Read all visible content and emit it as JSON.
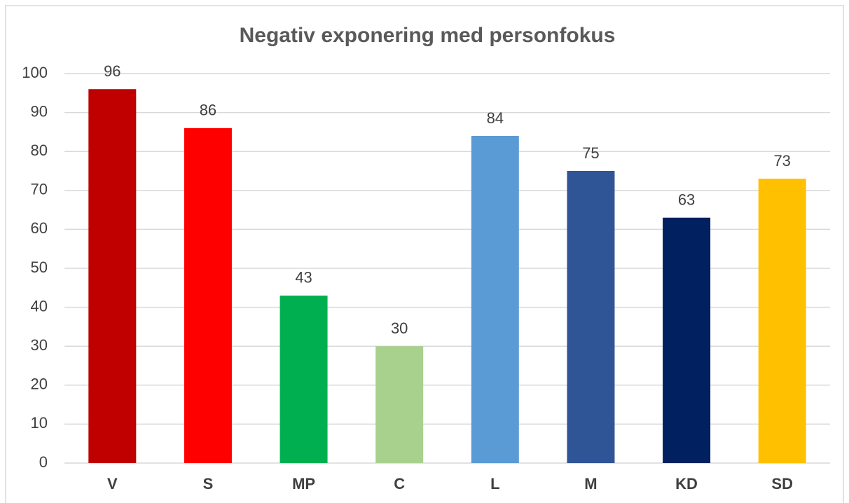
{
  "chart_data": {
    "type": "bar",
    "title": "Negativ exponering med personfokus",
    "categories": [
      "V",
      "S",
      "MP",
      "C",
      "L",
      "M",
      "KD",
      "SD"
    ],
    "values": [
      96,
      86,
      43,
      30,
      84,
      75,
      63,
      73
    ],
    "colors": [
      "#c00000",
      "#ff0000",
      "#00b050",
      "#a9d18e",
      "#5b9bd5",
      "#2f5597",
      "#002060",
      "#ffc000"
    ],
    "ylim": [
      0,
      100
    ],
    "yticks": [
      0,
      10,
      20,
      30,
      40,
      50,
      60,
      70,
      80,
      90,
      100
    ],
    "grid": true
  }
}
